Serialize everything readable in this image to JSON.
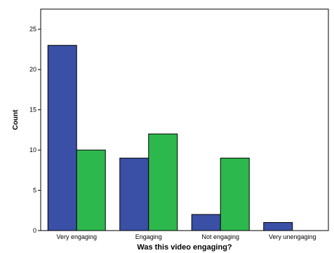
{
  "chart_data": {
    "type": "bar",
    "title": "",
    "xlabel": "Was this video engaging?",
    "ylabel": "Count",
    "categories": [
      "Very engaging",
      "Engaging",
      "Not engaging",
      "Very unengaging"
    ],
    "series": [
      {
        "values": [
          23,
          9,
          2,
          1
        ],
        "color": "#3a50a6"
      },
      {
        "values": [
          10,
          12,
          9,
          0
        ],
        "color": "#2db84d"
      }
    ],
    "ylim": [
      0,
      27.5
    ],
    "yticks": [
      0,
      5,
      10,
      15,
      20,
      25
    ],
    "grid": false,
    "legend": "none"
  }
}
